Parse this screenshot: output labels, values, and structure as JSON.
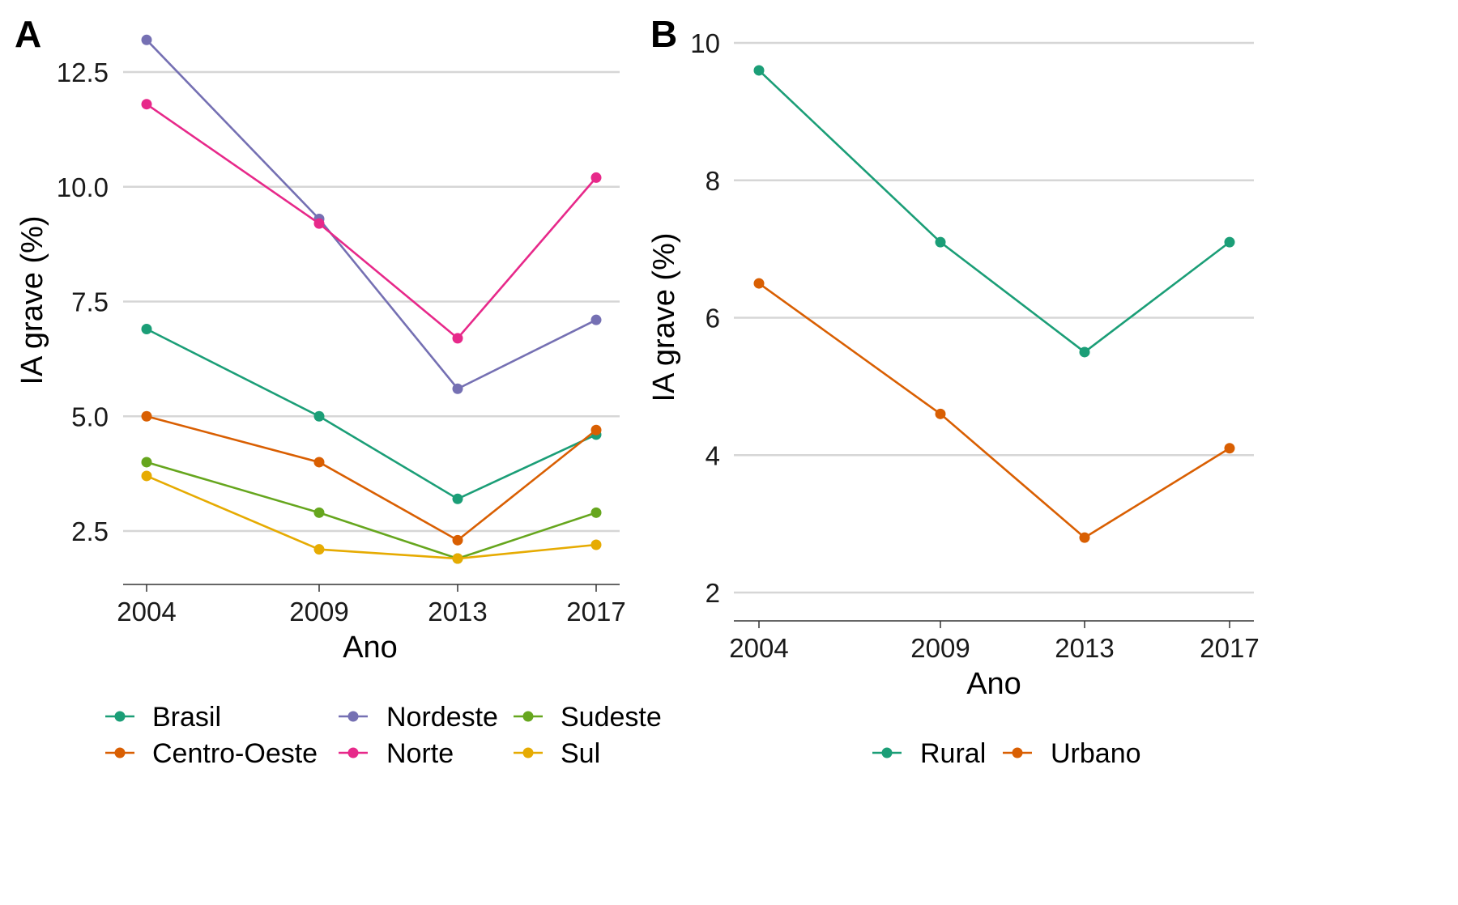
{
  "chart_data": [
    {
      "type": "line",
      "panel_label": "A",
      "xlabel": "Ano",
      "ylabel": "IA grave (%)",
      "categories": [
        "2004",
        "2009",
        "2013",
        "2017"
      ],
      "x": [
        2004,
        2009,
        2013,
        2017
      ],
      "ylim": [
        1.8,
        13.3
      ],
      "yticks": [
        2.5,
        5.0,
        7.5,
        10.0,
        12.5
      ],
      "ytick_labels": [
        "2.5",
        "5.0",
        "7.5",
        "10.0",
        "12.5"
      ],
      "grid": true,
      "legend_position": "bottom",
      "legend_columns": 3,
      "series": [
        {
          "name": "Brasil",
          "color": "#1b9e77",
          "values": [
            6.9,
            5.0,
            3.2,
            4.6
          ]
        },
        {
          "name": "Centro-Oeste",
          "color": "#d95f02",
          "values": [
            5.0,
            4.0,
            2.3,
            4.7
          ]
        },
        {
          "name": "Nordeste",
          "color": "#7570b3",
          "values": [
            13.2,
            9.3,
            5.6,
            7.1
          ]
        },
        {
          "name": "Norte",
          "color": "#e7298a",
          "values": [
            11.8,
            9.2,
            6.7,
            10.2
          ]
        },
        {
          "name": "Sudeste",
          "color": "#66a61e",
          "values": [
            4.0,
            2.9,
            1.9,
            2.9
          ]
        },
        {
          "name": "Sul",
          "color": "#e6ab02",
          "values": [
            3.7,
            2.1,
            1.9,
            2.2
          ]
        }
      ]
    },
    {
      "type": "line",
      "panel_label": "B",
      "xlabel": "Ano",
      "ylabel": "IA grave (%)",
      "categories": [
        "2004",
        "2009",
        "2013",
        "2017"
      ],
      "x": [
        2004,
        2009,
        2013,
        2017
      ],
      "ylim": [
        1.6,
        10.4
      ],
      "yticks": [
        2,
        4,
        6,
        8,
        10
      ],
      "ytick_labels": [
        "2",
        "4",
        "6",
        "8",
        "10"
      ],
      "grid": true,
      "legend_position": "bottom",
      "legend_columns": 2,
      "series": [
        {
          "name": "Rural",
          "color": "#1b9e77",
          "values": [
            9.6,
            7.1,
            5.5,
            7.1
          ]
        },
        {
          "name": "Urbano",
          "color": "#d95f02",
          "values": [
            6.5,
            4.6,
            2.8,
            4.1
          ]
        }
      ]
    }
  ]
}
